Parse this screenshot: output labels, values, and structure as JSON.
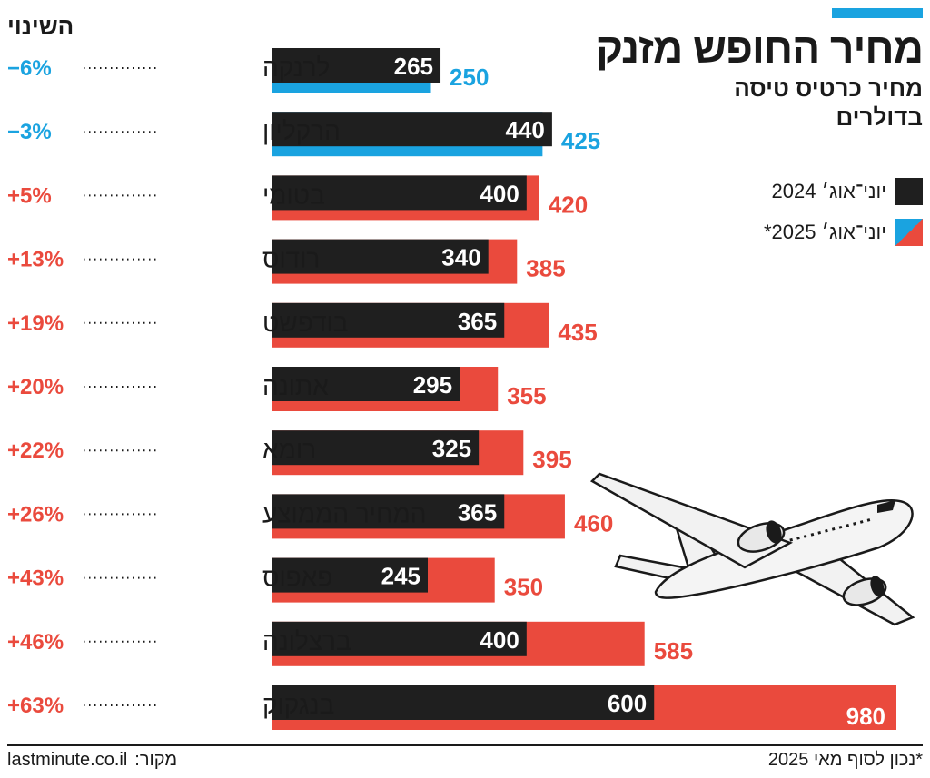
{
  "header": {
    "title": "מחיר החופש מזנק",
    "subtitle_line1": "מחיר כרטיס טיסה",
    "subtitle_line2": "בדולרים",
    "change_column": "השינוי"
  },
  "legend": {
    "item_2024": "יוני־אוג׳ 2024",
    "item_2025": "יוני־אוג׳ 2025*"
  },
  "footer": {
    "note": "*נכון לסוף מאי 2025",
    "source_label": "מקור:",
    "source_site": "lastminute.co.il"
  },
  "colors": {
    "bar_2024": "#1f1f1f",
    "increase": "#ea4a3d",
    "decrease": "#1aa3e0",
    "accent": "#1aa3e0"
  },
  "icons": {
    "illustration": "airplane-icon"
  },
  "chart_data": {
    "type": "bar",
    "orientation": "horizontal",
    "title": "מחיר החופש מזנק",
    "subtitle": "מחיר כרטיס טיסה בדולרים",
    "categories": [
      "לרנקה",
      "הרקליון",
      "בטומי",
      "רודוס",
      "בודפשט",
      "אתונה",
      "רומא",
      "המחיר הממוצע",
      "פאפוס",
      "ברצלונה",
      "בנגקוק"
    ],
    "series": [
      {
        "name": "יוני־אוג׳ 2024",
        "values": [
          265,
          440,
          400,
          340,
          365,
          295,
          325,
          365,
          245,
          400,
          600
        ]
      },
      {
        "name": "יוני־אוג׳ 2025*",
        "values": [
          250,
          425,
          420,
          385,
          435,
          355,
          395,
          460,
          350,
          585,
          980
        ]
      }
    ],
    "change_labels": [
      "−6%",
      "−3%",
      "+5%",
      "+13%",
      "+19%",
      "+20%",
      "+22%",
      "+26%",
      "+43%",
      "+46%",
      "+63%"
    ],
    "xlim": [
      0,
      980
    ],
    "grid": false,
    "legend_position": "right"
  }
}
